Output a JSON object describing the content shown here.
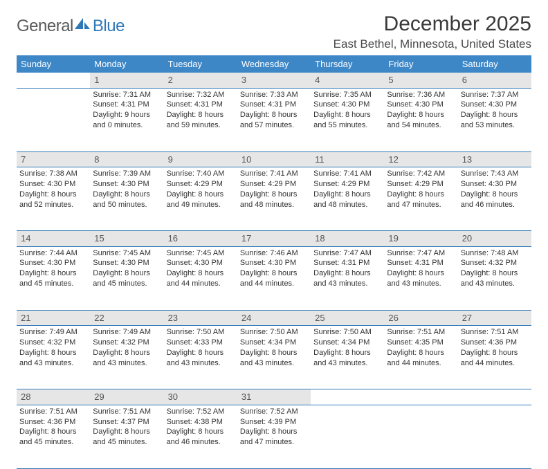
{
  "logo": {
    "text1": "General",
    "text2": "Blue",
    "icon_color": "#2f78b7"
  },
  "header": {
    "month_title": "December 2025",
    "location": "East Bethel, Minnesota, United States"
  },
  "colors": {
    "header_bg": "#3d87c7",
    "header_text": "#ffffff",
    "daynum_bg": "#e6e6e6",
    "border": "#2f78b7",
    "body_text": "#333333"
  },
  "day_headers": [
    "Sunday",
    "Monday",
    "Tuesday",
    "Wednesday",
    "Thursday",
    "Friday",
    "Saturday"
  ],
  "weeks": [
    [
      null,
      {
        "n": "1",
        "sr": "7:31 AM",
        "ss": "4:31 PM",
        "dl": "9 hours and 0 minutes."
      },
      {
        "n": "2",
        "sr": "7:32 AM",
        "ss": "4:31 PM",
        "dl": "8 hours and 59 minutes."
      },
      {
        "n": "3",
        "sr": "7:33 AM",
        "ss": "4:31 PM",
        "dl": "8 hours and 57 minutes."
      },
      {
        "n": "4",
        "sr": "7:35 AM",
        "ss": "4:30 PM",
        "dl": "8 hours and 55 minutes."
      },
      {
        "n": "5",
        "sr": "7:36 AM",
        "ss": "4:30 PM",
        "dl": "8 hours and 54 minutes."
      },
      {
        "n": "6",
        "sr": "7:37 AM",
        "ss": "4:30 PM",
        "dl": "8 hours and 53 minutes."
      }
    ],
    [
      {
        "n": "7",
        "sr": "7:38 AM",
        "ss": "4:30 PM",
        "dl": "8 hours and 52 minutes."
      },
      {
        "n": "8",
        "sr": "7:39 AM",
        "ss": "4:30 PM",
        "dl": "8 hours and 50 minutes."
      },
      {
        "n": "9",
        "sr": "7:40 AM",
        "ss": "4:29 PM",
        "dl": "8 hours and 49 minutes."
      },
      {
        "n": "10",
        "sr": "7:41 AM",
        "ss": "4:29 PM",
        "dl": "8 hours and 48 minutes."
      },
      {
        "n": "11",
        "sr": "7:41 AM",
        "ss": "4:29 PM",
        "dl": "8 hours and 48 minutes."
      },
      {
        "n": "12",
        "sr": "7:42 AM",
        "ss": "4:29 PM",
        "dl": "8 hours and 47 minutes."
      },
      {
        "n": "13",
        "sr": "7:43 AM",
        "ss": "4:30 PM",
        "dl": "8 hours and 46 minutes."
      }
    ],
    [
      {
        "n": "14",
        "sr": "7:44 AM",
        "ss": "4:30 PM",
        "dl": "8 hours and 45 minutes."
      },
      {
        "n": "15",
        "sr": "7:45 AM",
        "ss": "4:30 PM",
        "dl": "8 hours and 45 minutes."
      },
      {
        "n": "16",
        "sr": "7:45 AM",
        "ss": "4:30 PM",
        "dl": "8 hours and 44 minutes."
      },
      {
        "n": "17",
        "sr": "7:46 AM",
        "ss": "4:30 PM",
        "dl": "8 hours and 44 minutes."
      },
      {
        "n": "18",
        "sr": "7:47 AM",
        "ss": "4:31 PM",
        "dl": "8 hours and 43 minutes."
      },
      {
        "n": "19",
        "sr": "7:47 AM",
        "ss": "4:31 PM",
        "dl": "8 hours and 43 minutes."
      },
      {
        "n": "20",
        "sr": "7:48 AM",
        "ss": "4:32 PM",
        "dl": "8 hours and 43 minutes."
      }
    ],
    [
      {
        "n": "21",
        "sr": "7:49 AM",
        "ss": "4:32 PM",
        "dl": "8 hours and 43 minutes."
      },
      {
        "n": "22",
        "sr": "7:49 AM",
        "ss": "4:32 PM",
        "dl": "8 hours and 43 minutes."
      },
      {
        "n": "23",
        "sr": "7:50 AM",
        "ss": "4:33 PM",
        "dl": "8 hours and 43 minutes."
      },
      {
        "n": "24",
        "sr": "7:50 AM",
        "ss": "4:34 PM",
        "dl": "8 hours and 43 minutes."
      },
      {
        "n": "25",
        "sr": "7:50 AM",
        "ss": "4:34 PM",
        "dl": "8 hours and 43 minutes."
      },
      {
        "n": "26",
        "sr": "7:51 AM",
        "ss": "4:35 PM",
        "dl": "8 hours and 44 minutes."
      },
      {
        "n": "27",
        "sr": "7:51 AM",
        "ss": "4:36 PM",
        "dl": "8 hours and 44 minutes."
      }
    ],
    [
      {
        "n": "28",
        "sr": "7:51 AM",
        "ss": "4:36 PM",
        "dl": "8 hours and 45 minutes."
      },
      {
        "n": "29",
        "sr": "7:51 AM",
        "ss": "4:37 PM",
        "dl": "8 hours and 45 minutes."
      },
      {
        "n": "30",
        "sr": "7:52 AM",
        "ss": "4:38 PM",
        "dl": "8 hours and 46 minutes."
      },
      {
        "n": "31",
        "sr": "7:52 AM",
        "ss": "4:39 PM",
        "dl": "8 hours and 47 minutes."
      },
      null,
      null,
      null
    ]
  ],
  "labels": {
    "sunrise": "Sunrise:",
    "sunset": "Sunset:",
    "daylight": "Daylight:"
  }
}
